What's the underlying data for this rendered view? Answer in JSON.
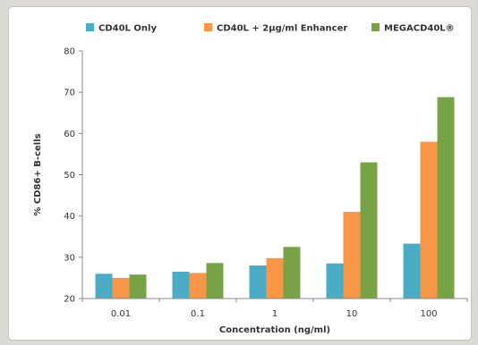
{
  "chart_data": {
    "type": "bar",
    "title": "",
    "xlabel": "Concentration (ng/ml)",
    "ylabel": "% CD86+ B-cells",
    "categories": [
      "0.01",
      "0.1",
      "1",
      "10",
      "100"
    ],
    "ylim": [
      20,
      80
    ],
    "yticks": [
      "20",
      "30",
      "40",
      "50",
      "60",
      "70",
      "80"
    ],
    "legend_position": "top",
    "grid": false,
    "series": [
      {
        "name": "CD40L Only",
        "color": "#4bacc6",
        "values": [
          26,
          26.5,
          28,
          28.5,
          33.3
        ]
      },
      {
        "name": "CD40L + 2µg/ml Enhancer",
        "color": "#f79646",
        "values": [
          25,
          26.2,
          29.8,
          41,
          58
        ]
      },
      {
        "name": "MEGACD40L®",
        "color": "#77a346",
        "values": [
          25.8,
          28.6,
          32.5,
          53,
          68.8
        ]
      }
    ]
  }
}
